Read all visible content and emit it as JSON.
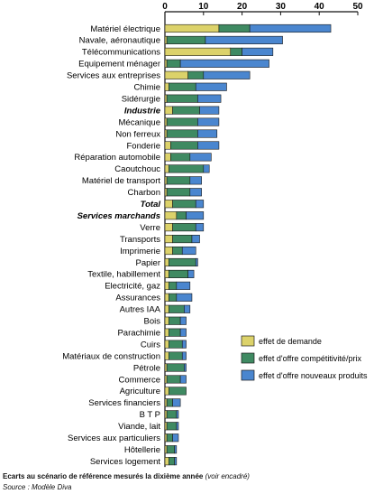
{
  "chart_data": {
    "type": "bar",
    "orientation": "horizontal",
    "stacked": true,
    "xlim": [
      0,
      50
    ],
    "xticks": [
      "0",
      "10",
      "20",
      "30",
      "40",
      "50"
    ],
    "legend_position": "bottom-right",
    "colors": {
      "effet de demande": "#dcd26a",
      "effet d'offre compétitivité/prix": "#3f8a62",
      "effet d'offre nouveaux produits": "#4a86cf"
    },
    "emphasized_categories": [
      "Industrie",
      "Total",
      "Services marchands"
    ],
    "categories": [
      "Matériel électrique",
      "Navale, aéronautique",
      "Télécommunications",
      "Equipement ménager",
      "Services aux entreprises",
      "Chimie",
      "Sidérurgie",
      "Industrie",
      "Mécanique",
      "Non ferreux",
      "Fonderie",
      "Réparation automobile",
      "Caoutchouc",
      "Matériel de transport",
      "Charbon",
      "Total",
      "Services marchands",
      "Verre",
      "Transports",
      "Imprimerie",
      "Papier",
      "Textile, habillement",
      "Electricité, gaz",
      "Assurances",
      "Autres IAA",
      "Bois",
      "Parachimie",
      "Cuirs",
      "Matériaux de construction",
      "Pétrole",
      "Commerce",
      "Agriculture",
      "Services financiers",
      "B T P",
      "Viande, lait",
      "Services aux particuliers",
      "Hôtellerie",
      "Services logement"
    ],
    "series": [
      {
        "name": "effet de demande",
        "values": [
          14,
          0.5,
          17,
          0.5,
          6,
          1,
          0.5,
          2,
          0.5,
          0.5,
          1.5,
          1.5,
          1,
          0.5,
          0.5,
          2,
          3,
          2,
          2,
          2,
          1,
          1,
          1,
          1,
          1,
          1,
          1,
          1,
          1,
          0.5,
          0.5,
          1,
          0.5,
          0.5,
          0.5,
          0.5,
          0.5,
          1
        ]
      },
      {
        "name": "effet d'offre compétitivité/prix",
        "values": [
          8,
          10,
          3,
          3.5,
          4,
          7,
          8,
          7,
          8,
          8,
          7,
          5,
          9,
          6,
          6,
          6,
          2.5,
          6,
          5,
          2.5,
          7,
          5,
          2,
          2,
          4,
          3,
          3,
          3.5,
          3.5,
          4.5,
          3.5,
          4.5,
          1.5,
          2.5,
          2.5,
          1.5,
          2,
          1.5
        ]
      },
      {
        "name": "effet d'offre nouveaux produits",
        "values": [
          21,
          20,
          8,
          23,
          12,
          8,
          6,
          5,
          5.5,
          5,
          5.5,
          5.5,
          1.5,
          3,
          3,
          2,
          4.5,
          2,
          2,
          3.5,
          0.5,
          1.5,
          3.5,
          4,
          1.5,
          1.5,
          1.5,
          1,
          1,
          0.5,
          1.5,
          0,
          2,
          0.5,
          0.5,
          1.5,
          0.5,
          0.5
        ]
      }
    ]
  },
  "caption": {
    "main": "Ecarts au scénario de référence mesurés la dixième année",
    "note": "(voir encadré)",
    "source": "Source :  Modèle Diva"
  }
}
